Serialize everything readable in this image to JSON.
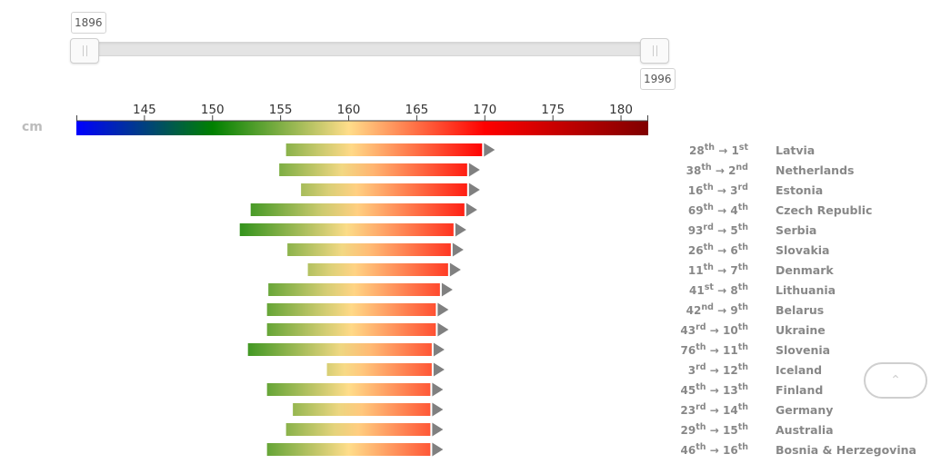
{
  "slider": {
    "min_label": "1896",
    "max_label": "1996",
    "range": [
      1896,
      1996
    ]
  },
  "unit": "cm",
  "scroll_top_icon": "chevron-up-icon",
  "chart_data": {
    "type": "bar",
    "subtype": "arrow-range",
    "color_scale": {
      "ticks": [
        145,
        150,
        155,
        160,
        165,
        170,
        175,
        180
      ],
      "domain": [
        140,
        182
      ],
      "stops": [
        {
          "value": 140,
          "color": "#0000ff"
        },
        {
          "value": 150,
          "color": "#008000"
        },
        {
          "value": 160,
          "color": "#ffdd8a"
        },
        {
          "value": 170,
          "color": "#ff0000"
        },
        {
          "value": 182,
          "color": "#800000"
        }
      ]
    },
    "rows": [
      {
        "country": "Latvia",
        "from_rank": "28",
        "from_sup": "th",
        "to_rank": "1",
        "to_sup": "st",
        "start": 155.4,
        "end": 169.8
      },
      {
        "country": "Netherlands",
        "from_rank": "38",
        "from_sup": "th",
        "to_rank": "2",
        "to_sup": "nd",
        "start": 154.9,
        "end": 168.7
      },
      {
        "country": "Estonia",
        "from_rank": "16",
        "from_sup": "th",
        "to_rank": "3",
        "to_sup": "rd",
        "start": 156.5,
        "end": 168.7
      },
      {
        "country": "Czech Republic",
        "from_rank": "69",
        "from_sup": "th",
        "to_rank": "4",
        "to_sup": "th",
        "start": 152.8,
        "end": 168.5
      },
      {
        "country": "Serbia",
        "from_rank": "93",
        "from_sup": "rd",
        "to_rank": "5",
        "to_sup": "th",
        "start": 152.0,
        "end": 167.7
      },
      {
        "country": "Slovakia",
        "from_rank": "26",
        "from_sup": "th",
        "to_rank": "6",
        "to_sup": "th",
        "start": 155.5,
        "end": 167.5
      },
      {
        "country": "Denmark",
        "from_rank": "11",
        "from_sup": "th",
        "to_rank": "7",
        "to_sup": "th",
        "start": 157.0,
        "end": 167.3
      },
      {
        "country": "Lithuania",
        "from_rank": "41",
        "from_sup": "st",
        "to_rank": "8",
        "to_sup": "th",
        "start": 154.1,
        "end": 166.7
      },
      {
        "country": "Belarus",
        "from_rank": "42",
        "from_sup": "nd",
        "to_rank": "9",
        "to_sup": "th",
        "start": 154.0,
        "end": 166.4
      },
      {
        "country": "Ukraine",
        "from_rank": "43",
        "from_sup": "rd",
        "to_rank": "10",
        "to_sup": "th",
        "start": 154.0,
        "end": 166.4
      },
      {
        "country": "Slovenia",
        "from_rank": "76",
        "from_sup": "th",
        "to_rank": "11",
        "to_sup": "th",
        "start": 152.6,
        "end": 166.1
      },
      {
        "country": "Iceland",
        "from_rank": "3",
        "from_sup": "rd",
        "to_rank": "12",
        "to_sup": "th",
        "start": 158.4,
        "end": 166.1
      },
      {
        "country": "Finland",
        "from_rank": "45",
        "from_sup": "th",
        "to_rank": "13",
        "to_sup": "th",
        "start": 154.0,
        "end": 166.0
      },
      {
        "country": "Germany",
        "from_rank": "23",
        "from_sup": "rd",
        "to_rank": "14",
        "to_sup": "th",
        "start": 155.9,
        "end": 166.0
      },
      {
        "country": "Australia",
        "from_rank": "29",
        "from_sup": "th",
        "to_rank": "15",
        "to_sup": "th",
        "start": 155.4,
        "end": 166.0
      },
      {
        "country": "Bosnia & Herzegovina",
        "from_rank": "46",
        "from_sup": "th",
        "to_rank": "16",
        "to_sup": "th",
        "start": 154.0,
        "end": 166.0
      }
    ]
  }
}
